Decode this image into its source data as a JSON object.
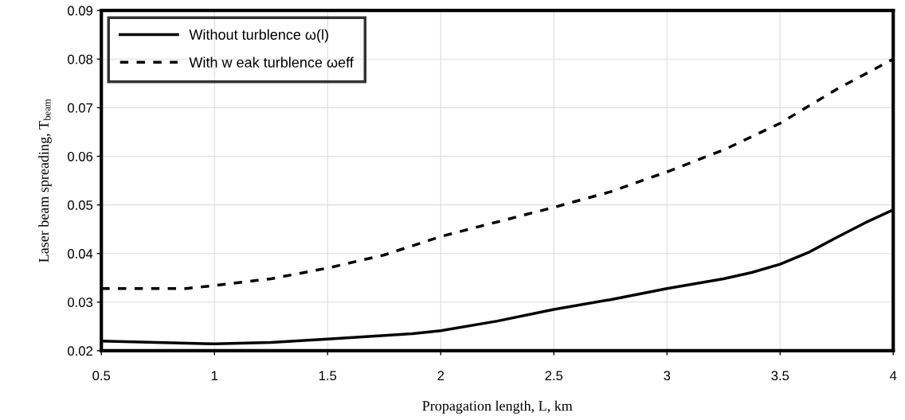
{
  "chart_data": {
    "type": "line",
    "xlabel": "Propagation length, L, km",
    "ylabel": "Laser beam spreading, T$_{beam}$",
    "xlim": [
      0.5,
      4
    ],
    "xticks": [
      0.5,
      1,
      1.5,
      2,
      2.5,
      3,
      3.5,
      4
    ],
    "ylim": [
      0.02,
      0.09
    ],
    "yticks": [
      {
        "value": 0.02,
        "label": "0.02"
      },
      {
        "value": 0.03,
        "label": "0.03"
      },
      {
        "value": 0.04,
        "label": "0.04"
      },
      {
        "value": 0.05,
        "label": "0.05"
      },
      {
        "value": 0.06,
        "label": "0.06"
      },
      {
        "value": 0.07,
        "label": "0.07"
      },
      {
        "value": 0.08,
        "label": "0.08"
      },
      {
        "value": 0.09,
        "label": "0.09"
      }
    ],
    "grid": true,
    "legend": "top left",
    "marker": "none",
    "series": [
      {
        "name": "Without turblence ω(l)",
        "color": "#000000",
        "line_style": "solid",
        "x": [
          0.5,
          1.0,
          1.25,
          1.5,
          1.875,
          2.0,
          2.25,
          2.5,
          2.75,
          3.0,
          3.25,
          3.375,
          3.5,
          3.625,
          3.75,
          3.875,
          4.0
        ],
        "values": [
          0.022,
          0.0214,
          0.0217,
          0.0224,
          0.0235,
          0.0241,
          0.0261,
          0.0285,
          0.0305,
          0.0328,
          0.0348,
          0.0361,
          0.0378,
          0.0402,
          0.0433,
          0.0463,
          0.049
        ]
      },
      {
        "name": "With w eak turblence ωeff",
        "color": "#000000",
        "line_style": "dashed",
        "x": [
          0.5,
          0.875,
          1.0,
          1.25,
          1.5,
          1.75,
          2.0,
          2.25,
          2.5,
          2.75,
          3.0,
          3.25,
          3.5,
          3.625,
          3.75,
          4.0
        ],
        "values": [
          0.0328,
          0.0328,
          0.0334,
          0.0348,
          0.037,
          0.0397,
          0.0435,
          0.0465,
          0.0495,
          0.0527,
          0.0568,
          0.0613,
          0.0668,
          0.0703,
          0.0738,
          0.08
        ]
      }
    ]
  }
}
